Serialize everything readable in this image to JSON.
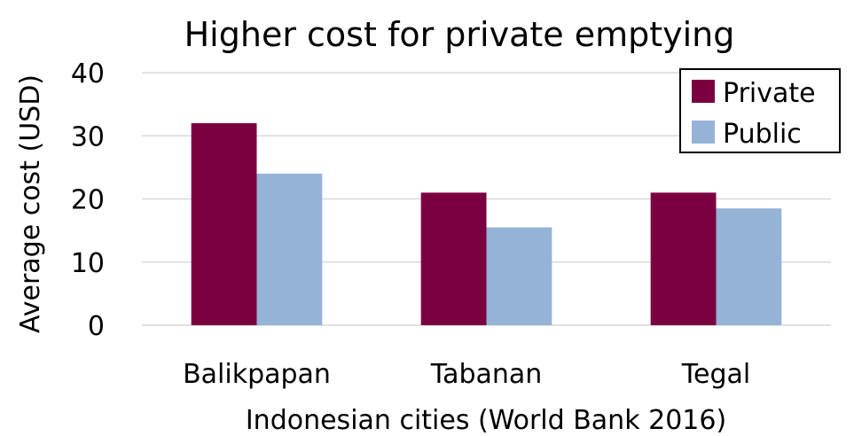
{
  "chart_data": {
    "type": "bar",
    "title": "Higher cost for private emptying",
    "xlabel": "Indonesian cities (World Bank 2016)",
    "ylabel": "Average cost (USD)",
    "categories": [
      "Balikpapan",
      "Tabanan",
      "Tegal"
    ],
    "series": [
      {
        "name": "Private",
        "values": [
          32,
          21,
          21
        ],
        "color": "#7b0041"
      },
      {
        "name": "Public",
        "values": [
          24,
          15.5,
          18.5
        ],
        "color": "#95b3d7"
      }
    ],
    "ylim": [
      0,
      40
    ],
    "yticks": [
      "0",
      "10",
      "20",
      "30",
      "40"
    ],
    "grid": true,
    "legend_position": "top-right"
  }
}
